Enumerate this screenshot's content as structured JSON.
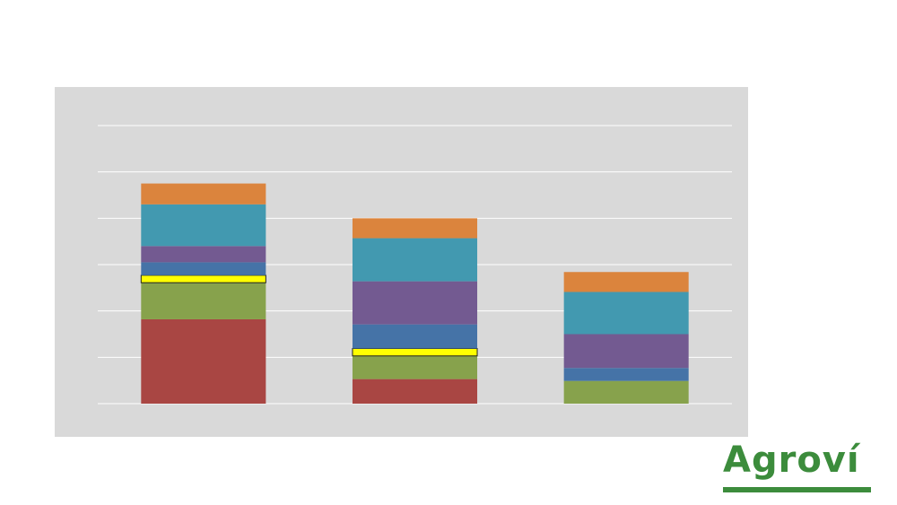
{
  "chart_data": {
    "type": "bar",
    "stacked": true,
    "categories": [
      "",
      "",
      ""
    ],
    "ylim": [
      0,
      6
    ],
    "grid": true,
    "series": [
      {
        "color": "#a94643",
        "values": [
          1.82,
          0.53,
          0
        ]
      },
      {
        "color": "#87a24c",
        "values": [
          0.79,
          0.5,
          0.49
        ]
      },
      {
        "color": "#ffff00",
        "values": [
          0.16,
          0.16,
          0
        ]
      },
      {
        "color": "#4573a7",
        "values": [
          0.28,
          0.52,
          0.28
        ]
      },
      {
        "color": "#735a91",
        "values": [
          0.35,
          0.93,
          0.73
        ]
      },
      {
        "color": "#4299b0",
        "values": [
          0.9,
          0.93,
          0.91
        ]
      },
      {
        "color": "#db843d",
        "values": [
          0.45,
          0.43,
          0.43
        ]
      }
    ]
  },
  "logo": {
    "text": "Agroví",
    "color": "#3c8c3c"
  }
}
